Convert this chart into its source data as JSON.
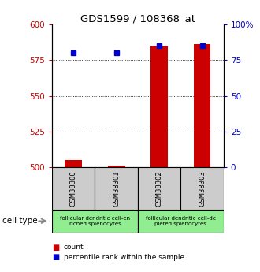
{
  "title": "GDS1599 / 108368_at",
  "samples": [
    "GSM38300",
    "GSM38301",
    "GSM38302",
    "GSM38303"
  ],
  "count_values": [
    505,
    501,
    585,
    586
  ],
  "percentile_values": [
    80,
    80,
    85,
    85
  ],
  "ylim_left": [
    500,
    600
  ],
  "ylim_right": [
    0,
    100
  ],
  "yticks_left": [
    500,
    525,
    550,
    575,
    600
  ],
  "yticks_right": [
    0,
    25,
    50,
    75,
    100
  ],
  "group_labels": [
    "follicular dendritic cell-en\nriched splenocytes",
    "follicular dendritic cell-de\npleted splenocytes"
  ],
  "group_color": "#90EE90",
  "bar_color": "#CC0000",
  "dot_color": "#0000CC",
  "left_tick_color": "#CC0000",
  "right_tick_color": "#0000CC",
  "sample_box_color": "#CCCCCC",
  "background_color": "#FFFFFF"
}
